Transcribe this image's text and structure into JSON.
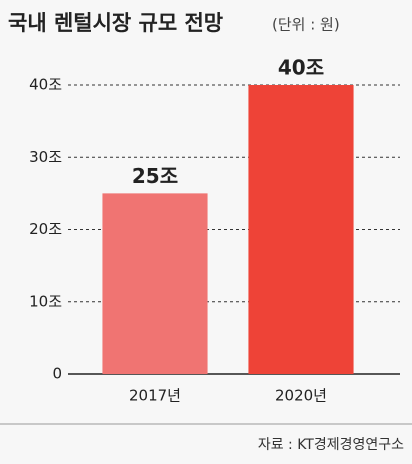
{
  "chart_data": {
    "type": "bar",
    "title": "국내 렌털시장 규모 전망",
    "subtitle": "(단위 : 원)",
    "categories": [
      "2017년",
      "2020년"
    ],
    "values": [
      25,
      40
    ],
    "value_labels": [
      "25조",
      "40조"
    ],
    "colors": [
      "#f07472",
      "#ee4337"
    ],
    "ylim": [
      0,
      40
    ],
    "yticks": [
      0,
      {
        "value": 10,
        "label": "10조"
      },
      {
        "value": 20,
        "label": "20조"
      },
      {
        "value": 30,
        "label": "30조"
      },
      {
        "value": 40,
        "label": "40조"
      }
    ],
    "grid": true,
    "source": "자료 : KT경제경영연구소"
  }
}
